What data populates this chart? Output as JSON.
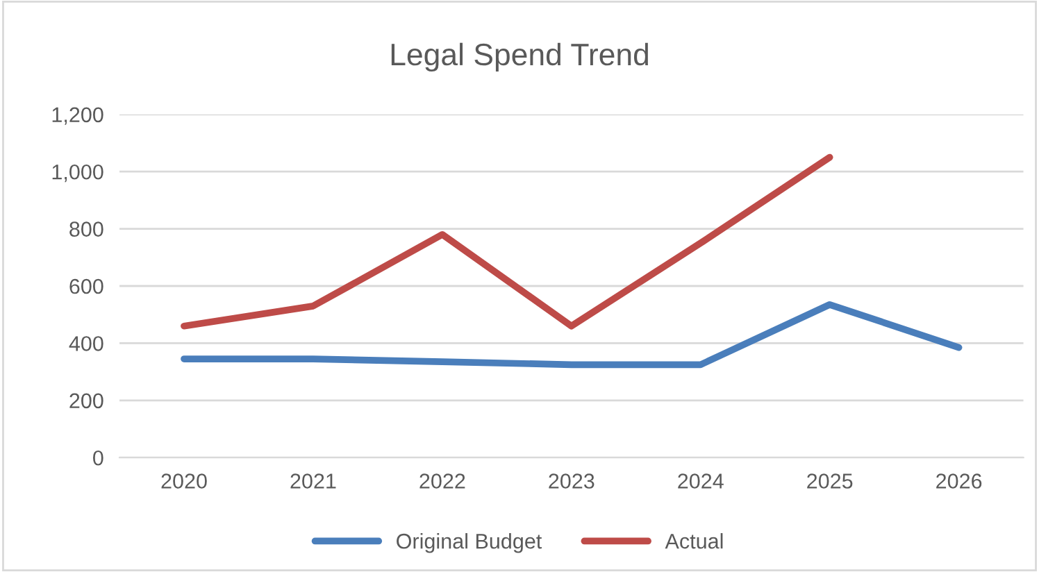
{
  "chart_data": {
    "type": "line",
    "title": "Legal Spend Trend",
    "categories": [
      "2020",
      "2021",
      "2022",
      "2023",
      "2024",
      "2025",
      "2026"
    ],
    "series": [
      {
        "name": "Original Budget",
        "color": "#4a7ebb",
        "values": [
          345,
          345,
          335,
          325,
          325,
          535,
          385
        ]
      },
      {
        "name": "Actual",
        "color": "#be4b48",
        "values": [
          460,
          530,
          780,
          460,
          750,
          1050,
          null
        ]
      }
    ],
    "ylim": [
      0,
      1200
    ],
    "yticks": [
      {
        "value": 0,
        "label": "0"
      },
      {
        "value": 200,
        "label": "200"
      },
      {
        "value": 400,
        "label": "400"
      },
      {
        "value": 600,
        "label": "600"
      },
      {
        "value": 800,
        "label": "800"
      },
      {
        "value": 1000,
        "label": "1,000"
      },
      {
        "value": 1200,
        "label": "1,200"
      }
    ],
    "grid": "y",
    "legend": "bottom",
    "marker": "none",
    "line_style": "solid"
  }
}
